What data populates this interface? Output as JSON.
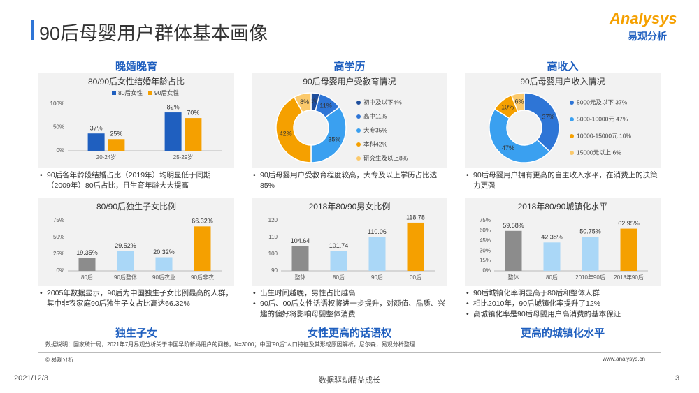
{
  "header": {
    "title": "90后母婴用户群体基本画像",
    "logo": "Analysys",
    "logo_cn": "易观分析"
  },
  "sections": {
    "top": [
      "晚婚晚育",
      "高学历",
      "高收入"
    ],
    "bottom": [
      "独生子女",
      "女性更高的话语权",
      "更高的城镇化水平"
    ]
  },
  "chart_data": [
    {
      "type": "bar",
      "title": "80/90后女性结婚年龄占比",
      "categories": [
        "20-24岁",
        "25-29岁"
      ],
      "series": [
        {
          "name": "80后女性",
          "color": "#1f5fbf",
          "values": [
            37,
            82
          ],
          "value_labels": [
            "37%",
            "82%"
          ]
        },
        {
          "name": "90后女性",
          "color": "#f5a000",
          "values": [
            25,
            70
          ],
          "value_labels": [
            "25%",
            "70%"
          ]
        }
      ],
      "ylim": [
        0,
        100
      ],
      "yticks": [
        {
          "value": 0,
          "label": "0%"
        },
        {
          "value": 50,
          "label": "50%"
        },
        {
          "value": 100,
          "label": "100%"
        }
      ],
      "notes": [
        "90后各年龄段结婚占比（2019年）均明显低于同期（2009年）80后占比，且生育年龄大大提高"
      ]
    },
    {
      "type": "donut",
      "title": "90后母婴用户受教育情况",
      "categories": [
        "初中及以下4%",
        "高中11%",
        "大专35%",
        "本科42%",
        "研究生及以上8%"
      ],
      "values": [
        4,
        11,
        35,
        42,
        8
      ],
      "value_labels": [
        "4%",
        "11%",
        "35%",
        "42%",
        "8%"
      ],
      "colors": [
        "#1f4e9c",
        "#2e75d6",
        "#3aa0f0",
        "#f5a000",
        "#fbc96b"
      ],
      "notes": [
        "90后母婴用户受教育程度较高，大专及以上学历占比达85%"
      ]
    },
    {
      "type": "donut",
      "title": "90后母婴用户收入情况",
      "categories": [
        "5000元及以下 37%",
        "5000-10000元 47%",
        "10000-15000元 10%",
        "15000元以上 6%"
      ],
      "values": [
        37,
        47,
        10,
        6
      ],
      "value_labels": [
        "37%",
        "47%",
        "10%",
        "6%"
      ],
      "colors": [
        "#2e75d6",
        "#3aa0f0",
        "#f5a000",
        "#fbc96b"
      ],
      "notes": [
        "90后母婴用户拥有更高的自主收入水平，在消费上的决策力更强"
      ]
    },
    {
      "type": "bar",
      "title": "80/90后独生子女比例",
      "categories": [
        "80后",
        "90后整体",
        "90后农业",
        "90后非农"
      ],
      "values": [
        19.35,
        29.52,
        20.32,
        66.32
      ],
      "value_labels": [
        "19.35%",
        "29.52%",
        "20.32%",
        "66.32%"
      ],
      "colors": [
        "#8c8c8c",
        "#aad7f7",
        "#aad7f7",
        "#f5a000"
      ],
      "ylim": [
        0,
        75
      ],
      "yticks": [
        {
          "value": 0,
          "label": "0%"
        },
        {
          "value": 25,
          "label": "25%"
        },
        {
          "value": 50,
          "label": "50%"
        },
        {
          "value": 75,
          "label": "75%"
        }
      ],
      "notes": [
        "2005年数据显示，90后为中国独生子女比例最高的人群，其中非农家庭90后独生子女占比高达66.32%"
      ]
    },
    {
      "type": "bar",
      "title": "2018年80/90男女比例",
      "categories": [
        "整体",
        "80后",
        "90后",
        "00后"
      ],
      "values": [
        104.64,
        101.74,
        110.06,
        118.78
      ],
      "colors": [
        "#8c8c8c",
        "#aad7f7",
        "#aad7f7",
        "#f5a000"
      ],
      "ylim": [
        90,
        120
      ],
      "yticks": [
        90,
        100,
        110,
        120
      ],
      "notes": [
        "出生时间越晚，男性占比越高",
        "90后、00后女性话语权将进一步提升，对颜值、品质、兴趣的偏好将影响母婴整体消费"
      ]
    },
    {
      "type": "bar",
      "title": "2018年80/90城镇化水平",
      "categories": [
        "整体",
        "80后",
        "2010年90后",
        "2018年90后"
      ],
      "values": [
        59.58,
        42.38,
        50.75,
        62.95
      ],
      "value_labels": [
        "59.58%",
        "42.38%",
        "50.75%",
        "62.95%"
      ],
      "colors": [
        "#8c8c8c",
        "#aad7f7",
        "#aad7f7",
        "#f5a000"
      ],
      "ylim": [
        0,
        75
      ],
      "yticks": [
        {
          "value": 0,
          "label": "0%"
        },
        {
          "value": 15,
          "label": "15%"
        },
        {
          "value": 30,
          "label": "30%"
        },
        {
          "value": 45,
          "label": "45%"
        },
        {
          "value": 60,
          "label": "60%"
        },
        {
          "value": 75,
          "label": "75%"
        }
      ],
      "notes": [
        "90后城镇化率明显高于80后和整体人群",
        "相比2010年，90后城镇化率提升了12%",
        "高城镇化率是90后母婴用户高消费的基本保证"
      ]
    }
  ],
  "footer": {
    "source": "数据说明：国家统计局，2021年7月易观分析关于中国早阶新妈用户的问卷，N=3000；中国“90后”人口特征及其形成原因解析，尼尔森，易观分析整理",
    "copyright": "© 易观分析",
    "website": "www.analysys.cn",
    "date": "2021/12/3",
    "slogan": "数据驱动精益成长",
    "page": "3"
  }
}
